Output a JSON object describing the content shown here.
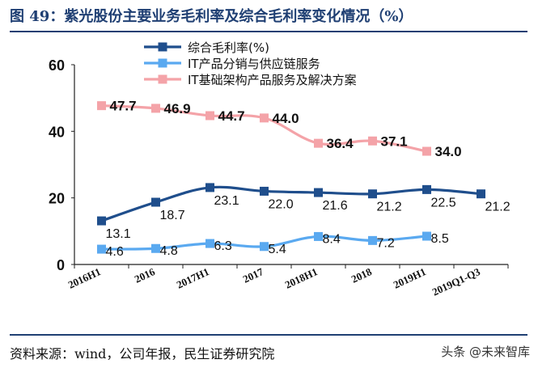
{
  "header": {
    "title": "图 49：紫光股份主要业务毛利率及综合毛利率变化情况（%）"
  },
  "footer": {
    "source": "资料来源：wind，公司年报，民生证券研究院",
    "watermark": "头条 @未来智库"
  },
  "chart_data": {
    "type": "line",
    "title": "图 49：紫光股份主要业务毛利率及综合毛利率变化情况（%）",
    "categories": [
      "2016H1",
      "2016",
      "2017H1",
      "2017",
      "2018H1",
      "2018",
      "2019H1",
      "2019Q1-Q3"
    ],
    "ylim": [
      0,
      60
    ],
    "yticks": [
      0,
      20,
      40,
      60
    ],
    "grid": false,
    "legend_position": "top-left",
    "series": [
      {
        "name": "综合毛利率(%)",
        "color": "#1f4e8c",
        "values": [
          13.1,
          18.7,
          23.1,
          22.0,
          21.6,
          21.2,
          22.5,
          21.2
        ],
        "labels": [
          "13.1",
          "18.7",
          "23.1",
          "22.0",
          "21.6",
          "21.2",
          "22.5",
          "21.2"
        ]
      },
      {
        "name": "IT产品分销与供应链服务",
        "color": "#5aa9f0",
        "values": [
          4.6,
          4.8,
          6.3,
          5.4,
          8.4,
          7.2,
          8.5,
          null
        ],
        "labels": [
          "4.6",
          "4.8",
          "6.3",
          "5.4",
          "8.4",
          "7.2",
          "8.5",
          ""
        ]
      },
      {
        "name": "IT基础架构产品服务及解决方案",
        "color": "#f4a3a8",
        "values": [
          47.7,
          46.9,
          44.7,
          44.0,
          36.4,
          37.1,
          34.0,
          null
        ],
        "labels": [
          "47.7",
          "46.9",
          "44.7",
          "44.0",
          "36.4",
          "37.1",
          "34.0",
          ""
        ]
      }
    ]
  }
}
